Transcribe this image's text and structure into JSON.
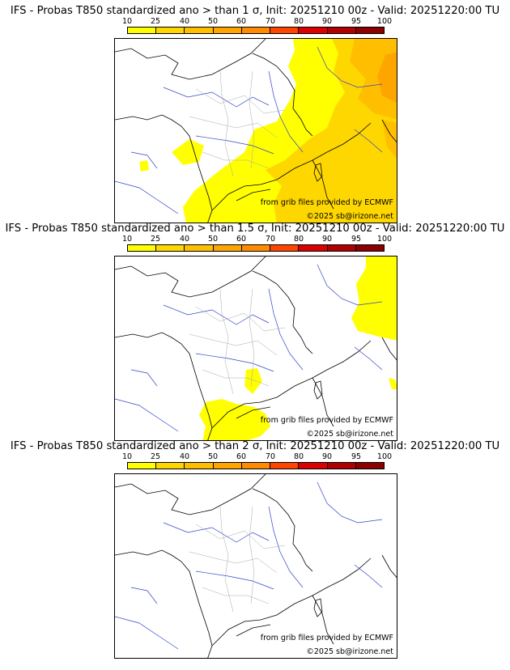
{
  "legend": {
    "labels": [
      "10",
      "25",
      "40",
      "50",
      "60",
      "70",
      "80",
      "90",
      "95",
      "100"
    ],
    "colors": [
      "#ffff00",
      "#ffd700",
      "#ffbf00",
      "#ffa500",
      "#ff8c00",
      "#ff4500",
      "#dd0000",
      "#b00000",
      "#8b0000"
    ]
  },
  "panels": [
    {
      "title": "IFS - Probas T850  standardized ano > than 1 σ, Init: 20251210 00z - Valid: 20251220:00 TU",
      "credit_source": "from grib files provided by ECMWF",
      "credit_copyright": "©2025 sb@irizone.net"
    },
    {
      "title": "IFS - Probas T850  standardized ano > than 1.5 σ, Init: 20251210 00z - Valid: 20251220:00 TU",
      "credit_source": "from grib files provided by ECMWF",
      "credit_copyright": "©2025 sb@irizone.net"
    },
    {
      "title": "IFS - Probas T850  standardized ano > than 2 σ, Init: 20251210 00z - Valid: 20251220:00 TU",
      "credit_source": "from grib files provided by ECMWF",
      "credit_copyright": "©2025 sb@irizone.net"
    }
  ]
}
